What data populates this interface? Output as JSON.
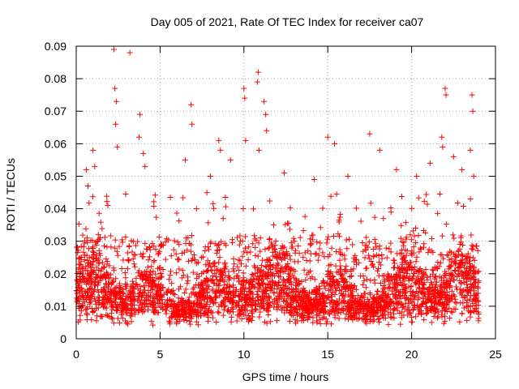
{
  "chart_data": {
    "type": "scatter",
    "title": "Day 005 of 2021, Rate Of TEC Index for receiver ca07",
    "xlabel": "GPS time / hours",
    "ylabel": "ROTI / TECUs",
    "xlim": [
      0,
      25
    ],
    "ylim": [
      0,
      0.09
    ],
    "xticks": [
      0,
      5,
      10,
      15,
      20,
      25
    ],
    "xtick_labels": [
      "0",
      "5",
      "10",
      "15",
      "20",
      "25"
    ],
    "yticks": [
      0,
      0.01,
      0.02,
      0.03,
      0.04,
      0.05,
      0.06,
      0.07,
      0.08,
      0.09
    ],
    "ytick_labels": [
      "0",
      "0.01",
      "0.02",
      "0.03",
      "0.04",
      "0.05",
      "0.06",
      "0.07",
      "0.08",
      "0.09"
    ],
    "grid": true,
    "marker": "+",
    "color": "#ff0000",
    "series": [
      {
        "name": "ROTI",
        "points": [
          [
            2.25,
            0.089
          ],
          [
            3.2,
            0.088
          ],
          [
            2.3,
            0.077
          ],
          [
            2.4,
            0.073
          ],
          [
            10.85,
            0.082
          ],
          [
            10.8,
            0.079
          ],
          [
            10.0,
            0.077
          ],
          [
            10.05,
            0.074
          ],
          [
            11.2,
            0.073
          ],
          [
            22.0,
            0.077
          ],
          [
            22.05,
            0.075
          ],
          [
            23.6,
            0.075
          ],
          [
            23.65,
            0.07
          ],
          [
            6.85,
            0.072
          ],
          [
            6.9,
            0.066
          ],
          [
            3.8,
            0.069
          ],
          [
            3.75,
            0.062
          ],
          [
            11.3,
            0.069
          ],
          [
            11.35,
            0.064
          ],
          [
            21.8,
            0.062
          ],
          [
            21.85,
            0.059
          ],
          [
            17.5,
            0.063
          ],
          [
            1.0,
            0.058
          ],
          [
            1.1,
            0.053
          ],
          [
            2.35,
            0.066
          ],
          [
            2.45,
            0.059
          ],
          [
            10.9,
            0.058
          ],
          [
            8.5,
            0.061
          ],
          [
            8.6,
            0.058
          ],
          [
            10.1,
            0.061
          ],
          [
            15.0,
            0.062
          ],
          [
            15.4,
            0.06
          ],
          [
            18.1,
            0.058
          ],
          [
            22.5,
            0.056
          ],
          [
            23.5,
            0.058
          ],
          [
            0.6,
            0.052
          ],
          [
            0.7,
            0.047
          ],
          [
            4.0,
            0.057
          ],
          [
            4.1,
            0.053
          ],
          [
            6.5,
            0.055
          ],
          [
            8.0,
            0.05
          ],
          [
            9.2,
            0.055
          ],
          [
            12.4,
            0.051
          ],
          [
            14.2,
            0.049
          ],
          [
            16.2,
            0.05
          ],
          [
            19.1,
            0.052
          ],
          [
            20.3,
            0.05
          ],
          [
            21.1,
            0.054
          ],
          [
            23.0,
            0.052
          ],
          [
            23.7,
            0.05
          ]
        ]
      }
    ]
  }
}
